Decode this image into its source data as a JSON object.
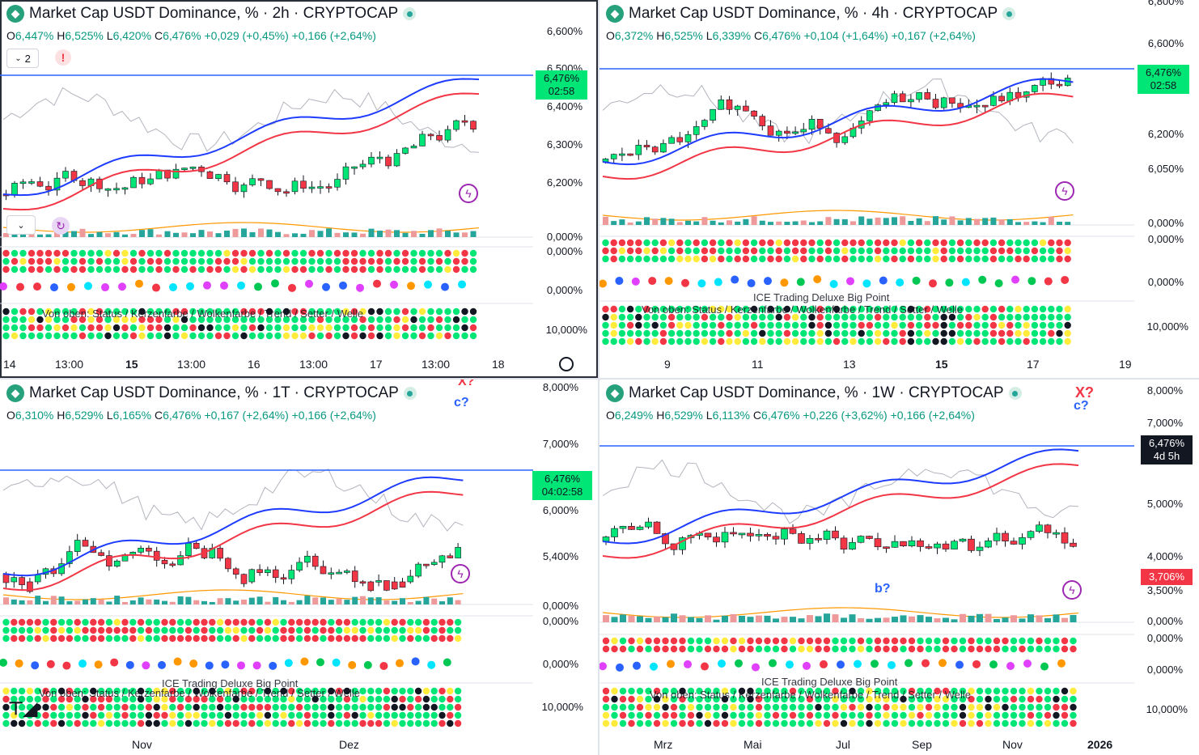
{
  "colors": {
    "up": "#00e676",
    "down": "#f23645",
    "blue": "#1e3cff",
    "accent": "#089981",
    "tag": "#00e676"
  },
  "panes": [
    {
      "id": "p2h",
      "title": "Market Cap USDT Dominance, % · 2h · CRYPTOCAP",
      "ohlc": {
        "o_lab": "O",
        "o": "6,447%",
        "h_lab": "H",
        "h": "6,525%",
        "l_lab": "L",
        "l": "6,420%",
        "c_lab": "C",
        "c": "6,476%",
        "chg": "+0,029 (+0,45%)",
        "chg2": "+0,166 (+2,64%)"
      },
      "price_axis": [
        "6,600%",
        "6,500%",
        "6,400%",
        "6,300%",
        "6,200%",
        "0,000%",
        "0,000%",
        "0,000%",
        "10,000%"
      ],
      "price_tag": "6,476%",
      "countdown": "02:58",
      "time_axis": [
        "14",
        "13:00",
        "15",
        "13:00",
        "16",
        "13:00",
        "17",
        "13:00",
        "18"
      ],
      "indicator_count": "2",
      "overlay_text": "Von oben: Status / Kerzenfarbe / Wolkenfarbe / Trend / Setter / Welle"
    },
    {
      "id": "p4h",
      "title": "Market Cap USDT Dominance, % · 4h · CRYPTOCAP",
      "ohlc": {
        "o_lab": "O",
        "o": "6,372%",
        "h_lab": "H",
        "h": "6,525%",
        "l_lab": "L",
        "l": "6,339%",
        "c_lab": "C",
        "c": "6,476%",
        "chg": "+0,104 (+1,64%)",
        "chg2": "+0,167 (+2,64%)"
      },
      "price_axis": [
        "6,800%",
        "6,600%",
        "6,200%",
        "6,050%",
        "0,000%",
        "0,000%",
        "0,000%",
        "10,000%"
      ],
      "price_tag": "6,476%",
      "countdown": "02:58",
      "time_axis": [
        "9",
        "11",
        "13",
        "15",
        "17",
        "19"
      ],
      "overlay_text": "Von oben: Status / Kerzenfarbe / Wolkenfarbe / Trend / Setter / Welle",
      "overlay_text2": "ICE Trading Deluxe Big Point"
    },
    {
      "id": "p1d",
      "title": "Market Cap USDT Dominance, % · 1T · CRYPTOCAP",
      "ohlc": {
        "o_lab": "O",
        "o": "6,310%",
        "h_lab": "H",
        "h": "6,529%",
        "l_lab": "L",
        "l": "6,165%",
        "c_lab": "C",
        "c": "6,476%",
        "chg": "+0,167 (+2,64%)",
        "chg2": "+0,166 (+2,64%)"
      },
      "price_axis": [
        "8,000%",
        "7,000%",
        "6,000%",
        "5,400%",
        "0,000%",
        "0,000%",
        "0,000%",
        "10,000%"
      ],
      "price_tag": "6,476%",
      "countdown": "04:02:58",
      "time_axis": [
        "Nov",
        "Dez"
      ],
      "wave_labels": [
        "X?",
        "c?"
      ],
      "overlay_text": "Von oben: Status / Kerzenfarbe / Wolkenfarbe / Trend / Setter / Welle",
      "overlay_text2": "ICE Trading Deluxe Big Point"
    },
    {
      "id": "p1w",
      "title": "Market Cap USDT Dominance, % · 1W · CRYPTOCAP",
      "ohlc": {
        "o_lab": "O",
        "o": "6,249%",
        "h_lab": "H",
        "h": "6,529%",
        "l_lab": "L",
        "l": "6,113%",
        "c_lab": "C",
        "c": "6,476%",
        "chg": "+0,226 (+3,62%)",
        "chg2": "+0,166 (+2,64%)"
      },
      "price_axis": [
        "8,000%",
        "7,000%",
        "5,000%",
        "4,000%",
        "3,500%",
        "0,000%",
        "0,000%",
        "0,000%",
        "10,000%"
      ],
      "price_tag": "6,476%",
      "countdown": "4d 5h",
      "price_tag2": "3,706%",
      "time_axis": [
        "Mrz",
        "Mai",
        "Jul",
        "Sep",
        "Nov",
        "2026"
      ],
      "wave_labels": [
        "X?",
        "c?",
        "b?"
      ],
      "overlay_text": "Von oben: Status / Kerzenfarbe / Wolkenfarbe / Trend / Setter / Welle",
      "overlay_text2": "ICE Trading Deluxe Big Point"
    }
  ]
}
